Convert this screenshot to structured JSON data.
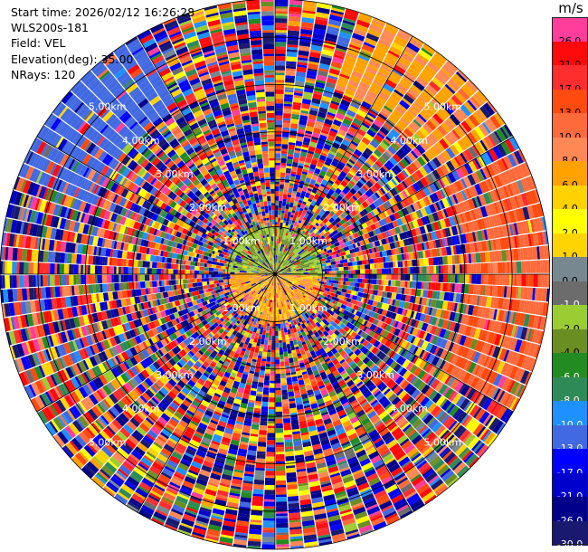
{
  "info": {
    "start_time": "Start time: 2026/02/12 16:26:28",
    "station": "WLS200s-181",
    "field": "Field: VEL",
    "elevation": "Elevation(deg): 35.00",
    "nrays": "NRays: 120"
  },
  "colorbar": {
    "unit": "m/s",
    "segments": [
      {
        "label": "26.0",
        "color": "#ff3d9a"
      },
      {
        "label": "21.0",
        "color": "#ff0a0a"
      },
      {
        "label": "17.0",
        "color": "#ff2e2e"
      },
      {
        "label": "13.0",
        "color": "#ff4a10"
      },
      {
        "label": "10.0",
        "color": "#ff6a3a"
      },
      {
        "label": "8.0",
        "color": "#ff8855"
      },
      {
        "label": "6.0",
        "color": "#ffa200"
      },
      {
        "label": "4.0",
        "color": "#ffd200"
      },
      {
        "label": "2.0",
        "color": "#ffff00"
      },
      {
        "label": "1.0",
        "color": "#ffd400"
      },
      {
        "label": "0.0",
        "color": "#778890"
      },
      {
        "label": "-1.0",
        "color": "#6c6c6c"
      },
      {
        "label": "-2.0",
        "color": "#9acd32"
      },
      {
        "label": "-4.0",
        "color": "#6b8e23"
      },
      {
        "label": "-6.0",
        "color": "#228b22"
      },
      {
        "label": "-8.0",
        "color": "#2e8b57"
      },
      {
        "label": "-10.0",
        "color": "#1e90ff"
      },
      {
        "label": "-13.0",
        "color": "#4169e1"
      },
      {
        "label": "-17.0",
        "color": "#0000ff"
      },
      {
        "label": "-21.0",
        "color": "#0000cd"
      },
      {
        "label": "-26.0",
        "color": "#00008b"
      },
      {
        "label": "-30.0",
        "color": "#191970"
      }
    ]
  },
  "chart_data": {
    "type": "heatmap",
    "projection": "polar PPI",
    "field": "VEL",
    "unit": "m/s",
    "range_rings_km": [
      {
        "value": 1.0,
        "label": "1.00km"
      },
      {
        "value": 2.0,
        "label": "2.00km"
      },
      {
        "value": 3.0,
        "label": "3.00km"
      },
      {
        "value": 4.0,
        "label": "4.00km"
      },
      {
        "value": 5.0,
        "label": "5.00km"
      }
    ],
    "max_range_km": 5.8,
    "nrays": 120,
    "azimuth_lines_every_deg": 30,
    "grid": true,
    "description_of_pattern": {
      "inner_disc_km": 1.0,
      "north_half_inner": "green / light-green (-2 to -6 m/s)",
      "south_half_inner": "yellow-orange (2 to 10 m/s)",
      "outer": "noisy mixed velocities",
      "northwest_outer": "blue (-10 to -13 m/s)",
      "northeast_outer": "orange-yellow (4 to 10 m/s)",
      "east_outer": "red-orange (10 to 13 m/s)"
    }
  }
}
